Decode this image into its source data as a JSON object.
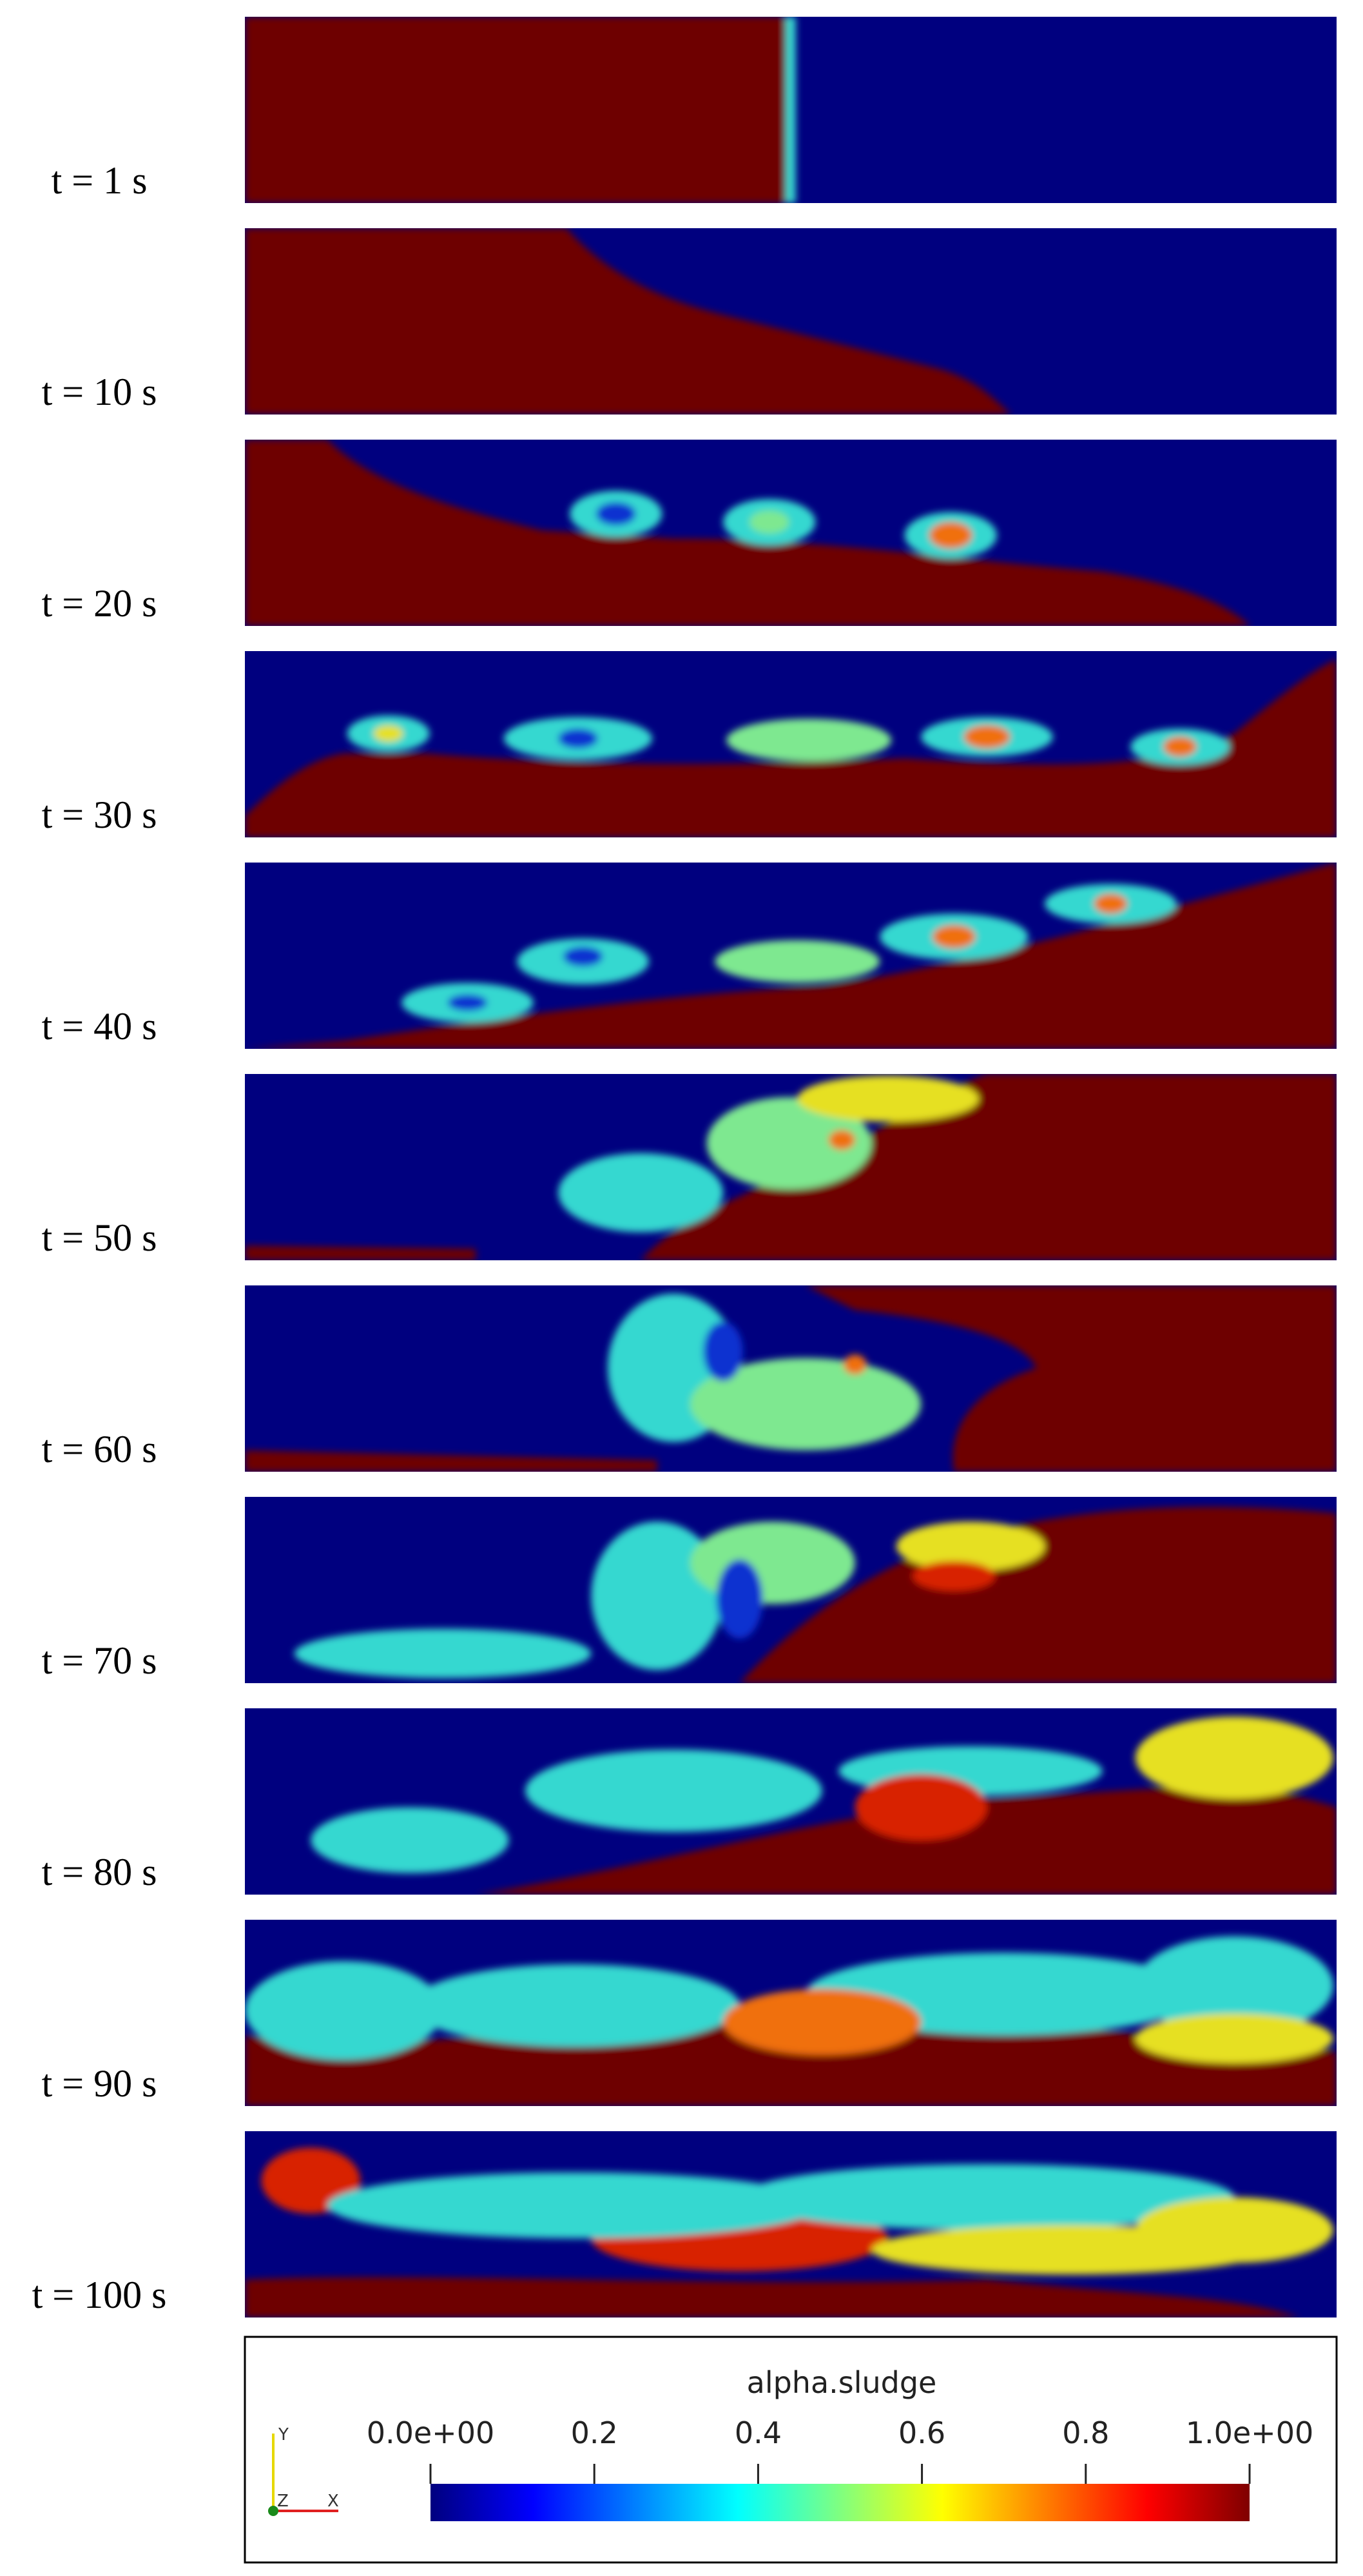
{
  "panels": [
    {
      "label": "t = 1 s"
    },
    {
      "label": "t = 10 s"
    },
    {
      "label": "t = 20 s"
    },
    {
      "label": "t = 30 s"
    },
    {
      "label": "t = 40 s"
    },
    {
      "label": "t = 50 s"
    },
    {
      "label": "t = 60 s"
    },
    {
      "label": "t = 70 s"
    },
    {
      "label": "t = 80 s"
    },
    {
      "label": "t = 90 s"
    },
    {
      "label": "t = 100 s"
    }
  ],
  "colorbar": {
    "title": "alpha.sludge",
    "ticks": [
      {
        "value": 0,
        "label": "0.0e+00"
      },
      0.2,
      0.4,
      0.6,
      0.8,
      {
        "value": 1,
        "label": "1.0e+00"
      }
    ],
    "range": [
      0,
      1
    ]
  },
  "axes_triad": {
    "y": "Y",
    "z": "Z",
    "x": "X"
  }
}
